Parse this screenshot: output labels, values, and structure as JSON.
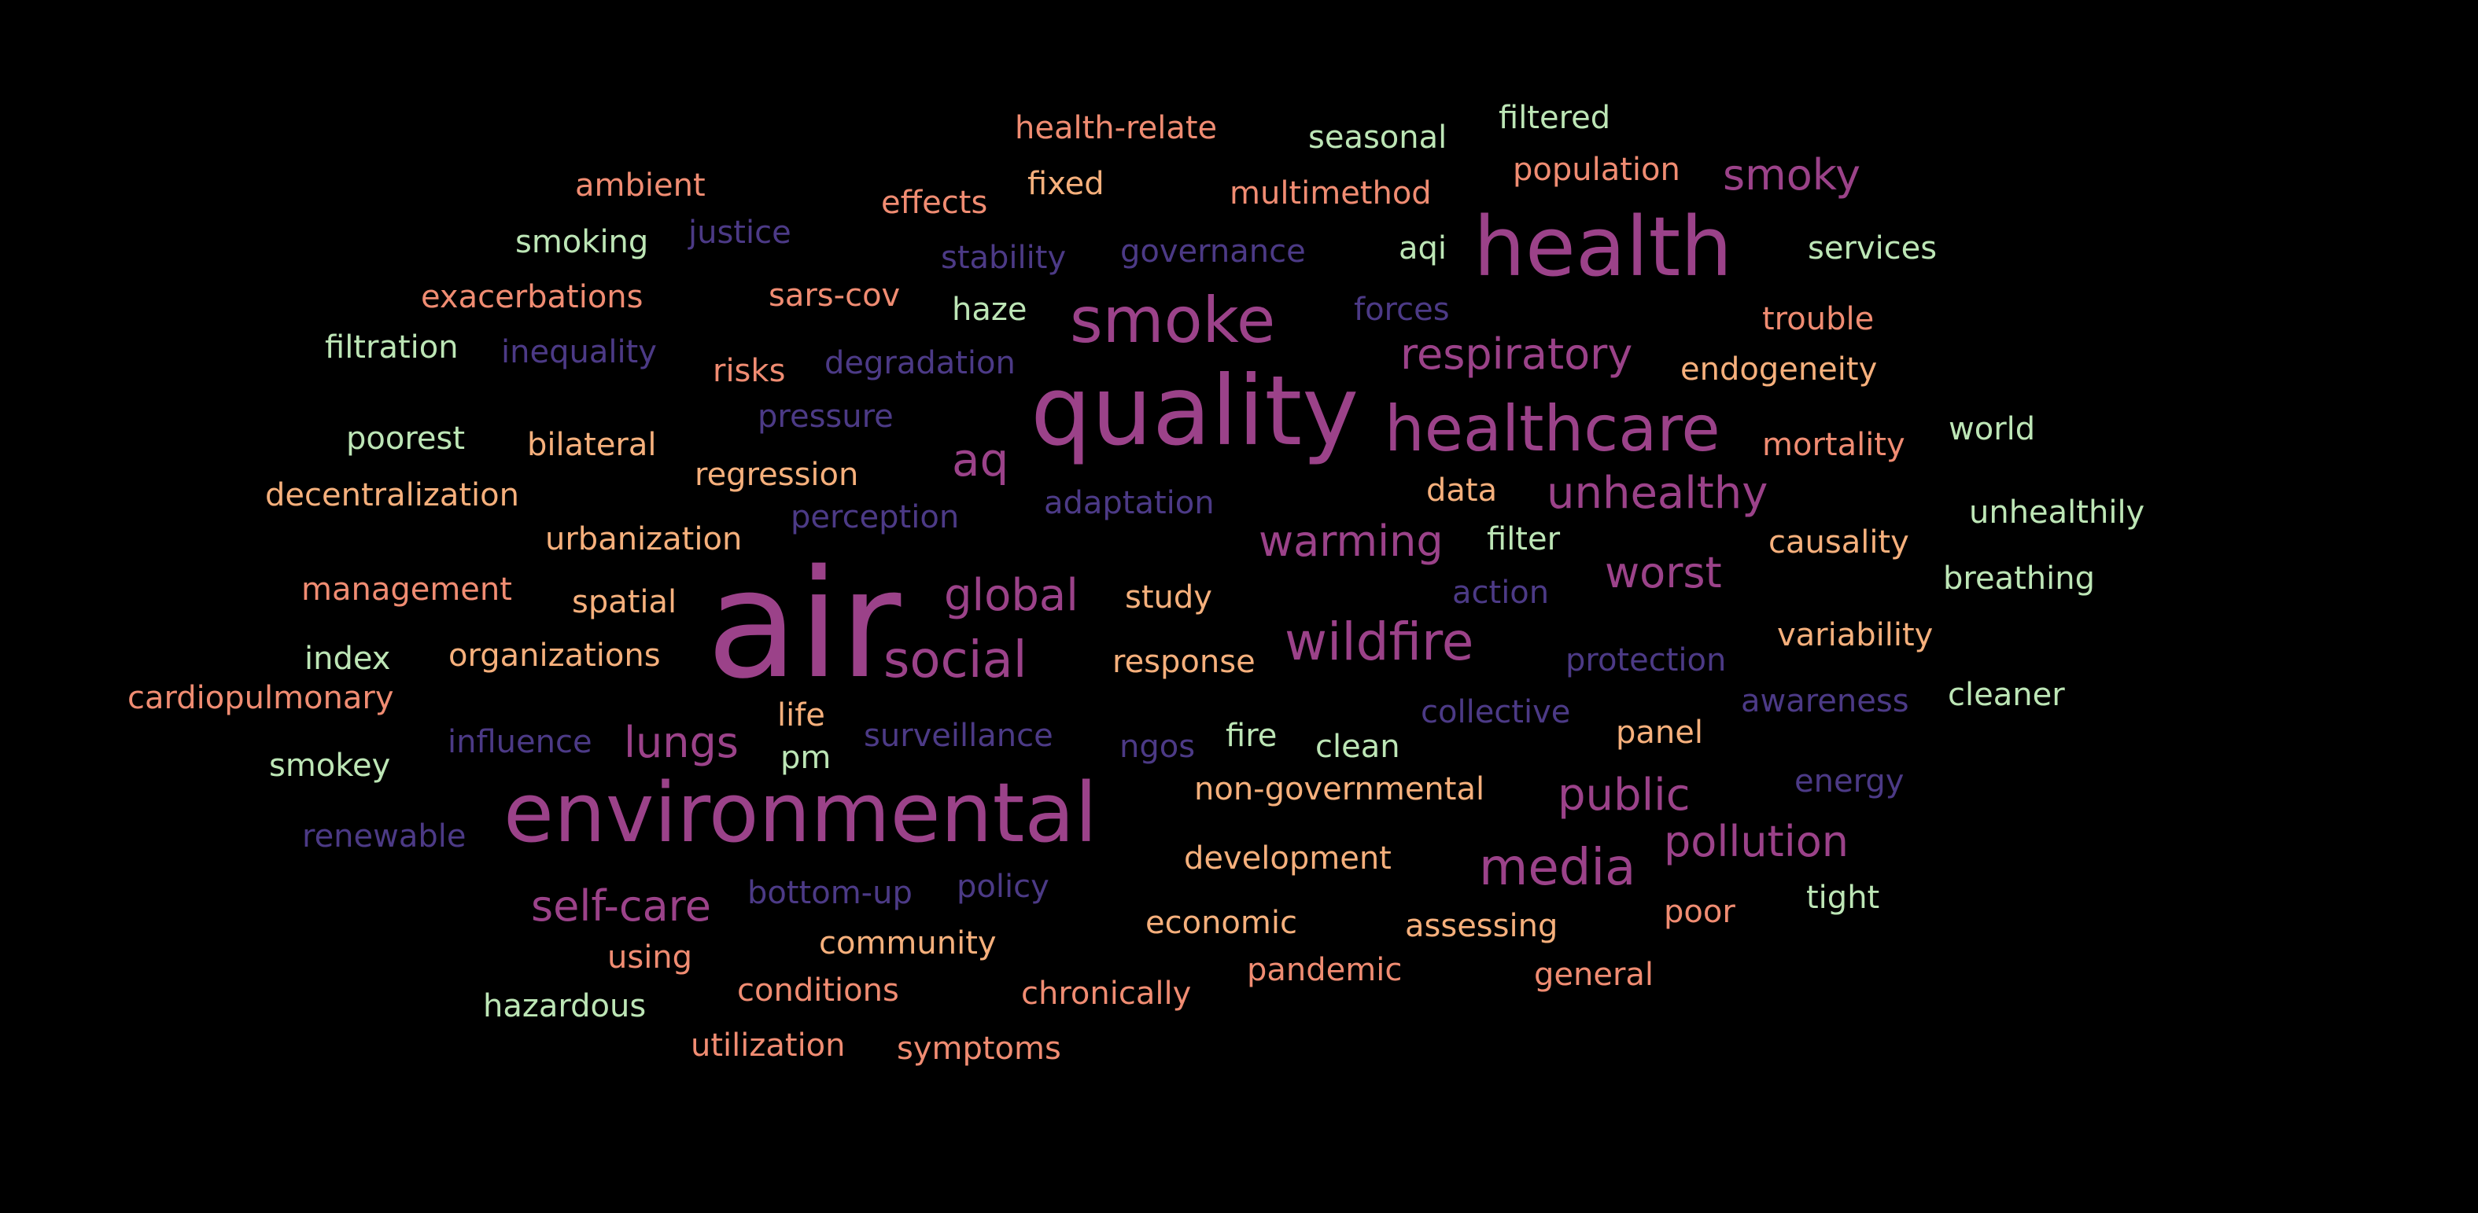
{
  "palette": {
    "background": "#000000",
    "purple": "#9b4289",
    "indigo": "#4c3a86",
    "salmon": "#f08c72",
    "peach": "#f6b07c",
    "mint": "#bde6b6"
  },
  "words": {
    "air": "air",
    "quality": "quality",
    "environmental": "environmental",
    "health": "health",
    "healthcare": "healthcare",
    "smoke": "smoke",
    "wildfire": "wildfire",
    "social": "social",
    "media": "media",
    "unhealthy": "unhealthy",
    "respiratory": "respiratory",
    "warming": "warming",
    "global": "global",
    "worst": "worst",
    "public": "public",
    "pollution": "pollution",
    "self_care": "self-care",
    "lungs": "lungs",
    "aq": "aq",
    "smoky": "smoky",
    "health_relate": "health-relate",
    "seasonal": "seasonal",
    "filtered": "filtered",
    "population": "population",
    "ambient": "ambient",
    "effects": "effects",
    "fixed": "fixed",
    "multimethod": "multimethod",
    "smoking": "smoking",
    "justice": "justice",
    "stability": "stability",
    "governance": "governance",
    "aqi": "aqi",
    "services": "services",
    "exacerbations": "exacerbations",
    "sars_cov": "sars-cov",
    "haze": "haze",
    "forces": "forces",
    "trouble": "trouble",
    "filtration": "filtration",
    "inequality": "inequality",
    "risks": "risks",
    "degradation": "degradation",
    "endogeneity": "endogeneity",
    "pressure": "pressure",
    "poorest": "poorest",
    "bilateral": "bilateral",
    "mortality": "mortality",
    "world": "world",
    "regression": "regression",
    "decentralization": "decentralization",
    "data": "data",
    "perception": "perception",
    "adaptation": "adaptation",
    "unhealthily": "unhealthily",
    "urbanization": "urbanization",
    "filter": "filter",
    "causality": "causality",
    "management": "management",
    "spatial": "spatial",
    "study": "study",
    "action": "action",
    "breathing": "breathing",
    "variability": "variability",
    "index": "index",
    "organizations": "organizations",
    "response": "response",
    "protection": "protection",
    "cardiopulmonary": "cardiopulmonary",
    "collective": "collective",
    "awareness": "awareness",
    "cleaner": "cleaner",
    "life": "life",
    "influence": "influence",
    "surveillance": "surveillance",
    "ngos": "ngos",
    "fire": "fire",
    "clean": "clean",
    "panel": "panel",
    "smokey": "smokey",
    "pm": "pm",
    "energy": "energy",
    "non_governmental": "non-governmental",
    "renewable": "renewable",
    "development": "development",
    "bottom_up": "bottom-up",
    "policy": "policy",
    "tight": "tight",
    "poor": "poor",
    "economic": "economic",
    "assessing": "assessing",
    "using": "using",
    "community": "community",
    "pandemic": "pandemic",
    "general": "general",
    "hazardous": "hazardous",
    "conditions": "conditions",
    "chronically": "chronically",
    "utilization": "utilization",
    "symptoms": "symptoms"
  }
}
